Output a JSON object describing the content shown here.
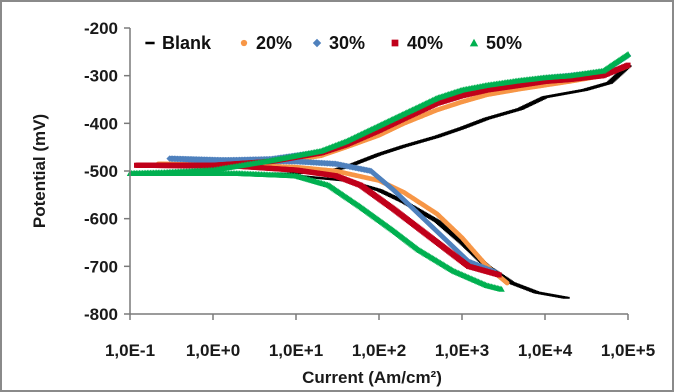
{
  "chart_data": {
    "type": "scatter",
    "title": "",
    "xlabel": "Current (Am/cm²)",
    "ylabel": "Potential (mV)",
    "x_scale": "log",
    "xlim": [
      0.1,
      100000
    ],
    "ylim": [
      -800,
      -200
    ],
    "x_tick_labels": [
      "1,0E-1",
      "1,0E+0",
      "1,0E+1",
      "1,0E+2",
      "1,0E+3",
      "1,0E+4",
      "1,0E+5"
    ],
    "x_ticks": [
      0.1,
      1,
      10,
      100,
      1000,
      10000,
      100000
    ],
    "y_ticks": [
      -200,
      -300,
      -400,
      -500,
      -600,
      -700,
      -800
    ],
    "grid": false,
    "legend": "top",
    "colors": {
      "frame": "#8a8a8a",
      "axis": "#7a7a7a"
    },
    "series": [
      {
        "name": "Blank",
        "color": "#000000",
        "marker": "dash",
        "points": [
          [
            100000,
            -280
          ],
          [
            60000,
            -315
          ],
          [
            30000,
            -330
          ],
          [
            10000,
            -345
          ],
          [
            5000,
            -370
          ],
          [
            2000,
            -390
          ],
          [
            1000,
            -410
          ],
          [
            500,
            -428
          ],
          [
            200,
            -448
          ],
          [
            100,
            -465
          ],
          [
            60,
            -480
          ],
          [
            40,
            -492
          ],
          [
            25,
            -500
          ],
          [
            10,
            -505
          ],
          [
            3,
            -507
          ],
          [
            1,
            -508
          ],
          [
            0.35,
            -508
          ],
          [
            2,
            -508
          ],
          [
            10,
            -510
          ],
          [
            40,
            -520
          ],
          [
            100,
            -540
          ],
          [
            200,
            -565
          ],
          [
            500,
            -605
          ],
          [
            1000,
            -650
          ],
          [
            2000,
            -700
          ],
          [
            4000,
            -735
          ],
          [
            8000,
            -755
          ],
          [
            18000,
            -766
          ]
        ]
      },
      {
        "name": "20%",
        "color": "#f79646",
        "marker": "dot",
        "points": [
          [
            100000,
            -280
          ],
          [
            50000,
            -300
          ],
          [
            20000,
            -312
          ],
          [
            10000,
            -320
          ],
          [
            5000,
            -328
          ],
          [
            2000,
            -340
          ],
          [
            1000,
            -355
          ],
          [
            500,
            -372
          ],
          [
            200,
            -400
          ],
          [
            100,
            -425
          ],
          [
            40,
            -450
          ],
          [
            20,
            -468
          ],
          [
            5,
            -484
          ],
          [
            1,
            -488
          ],
          [
            0.22,
            -485
          ],
          [
            2,
            -488
          ],
          [
            10,
            -492
          ],
          [
            30,
            -500
          ],
          [
            100,
            -520
          ],
          [
            200,
            -545
          ],
          [
            500,
            -590
          ],
          [
            1000,
            -640
          ],
          [
            2000,
            -700
          ],
          [
            3500,
            -735
          ]
        ]
      },
      {
        "name": "30%",
        "color": "#4f81bd",
        "marker": "diamond",
        "points": [
          [
            100000,
            -258
          ],
          [
            50000,
            -292
          ],
          [
            20000,
            -300
          ],
          [
            10000,
            -305
          ],
          [
            5000,
            -312
          ],
          [
            2000,
            -322
          ],
          [
            1000,
            -333
          ],
          [
            500,
            -350
          ],
          [
            200,
            -382
          ],
          [
            100,
            -408
          ],
          [
            40,
            -440
          ],
          [
            20,
            -460
          ],
          [
            5,
            -475
          ],
          [
            1,
            -478
          ],
          [
            0.3,
            -474
          ],
          [
            2,
            -478
          ],
          [
            10,
            -480
          ],
          [
            30,
            -485
          ],
          [
            80,
            -500
          ],
          [
            150,
            -540
          ],
          [
            300,
            -590
          ],
          [
            600,
            -640
          ],
          [
            1200,
            -690
          ],
          [
            2500,
            -712
          ]
        ]
      },
      {
        "name": "40%",
        "color": "#c0001a",
        "marker": "square",
        "points": [
          [
            100000,
            -278
          ],
          [
            50000,
            -300
          ],
          [
            20000,
            -308
          ],
          [
            10000,
            -312
          ],
          [
            5000,
            -320
          ],
          [
            2000,
            -330
          ],
          [
            1000,
            -342
          ],
          [
            500,
            -358
          ],
          [
            200,
            -390
          ],
          [
            100,
            -415
          ],
          [
            40,
            -445
          ],
          [
            20,
            -462
          ],
          [
            5,
            -480
          ],
          [
            1,
            -488
          ],
          [
            0.12,
            -488
          ],
          [
            2,
            -490
          ],
          [
            10,
            -498
          ],
          [
            30,
            -510
          ],
          [
            60,
            -530
          ],
          [
            150,
            -580
          ],
          [
            300,
            -620
          ],
          [
            600,
            -660
          ],
          [
            1200,
            -700
          ],
          [
            2800,
            -718
          ]
        ]
      },
      {
        "name": "50%",
        "color": "#00b050",
        "marker": "triangle",
        "points": [
          [
            100000,
            -255
          ],
          [
            50000,
            -290
          ],
          [
            20000,
            -300
          ],
          [
            10000,
            -304
          ],
          [
            5000,
            -310
          ],
          [
            2000,
            -320
          ],
          [
            1000,
            -330
          ],
          [
            500,
            -347
          ],
          [
            200,
            -380
          ],
          [
            100,
            -405
          ],
          [
            40,
            -438
          ],
          [
            20,
            -458
          ],
          [
            5,
            -478
          ],
          [
            1,
            -498
          ],
          [
            0.25,
            -503
          ],
          [
            0.1,
            -505
          ],
          [
            2,
            -505
          ],
          [
            10,
            -510
          ],
          [
            25,
            -530
          ],
          [
            60,
            -575
          ],
          [
            150,
            -625
          ],
          [
            300,
            -665
          ],
          [
            800,
            -710
          ],
          [
            2000,
            -740
          ],
          [
            3000,
            -748
          ]
        ]
      }
    ]
  }
}
